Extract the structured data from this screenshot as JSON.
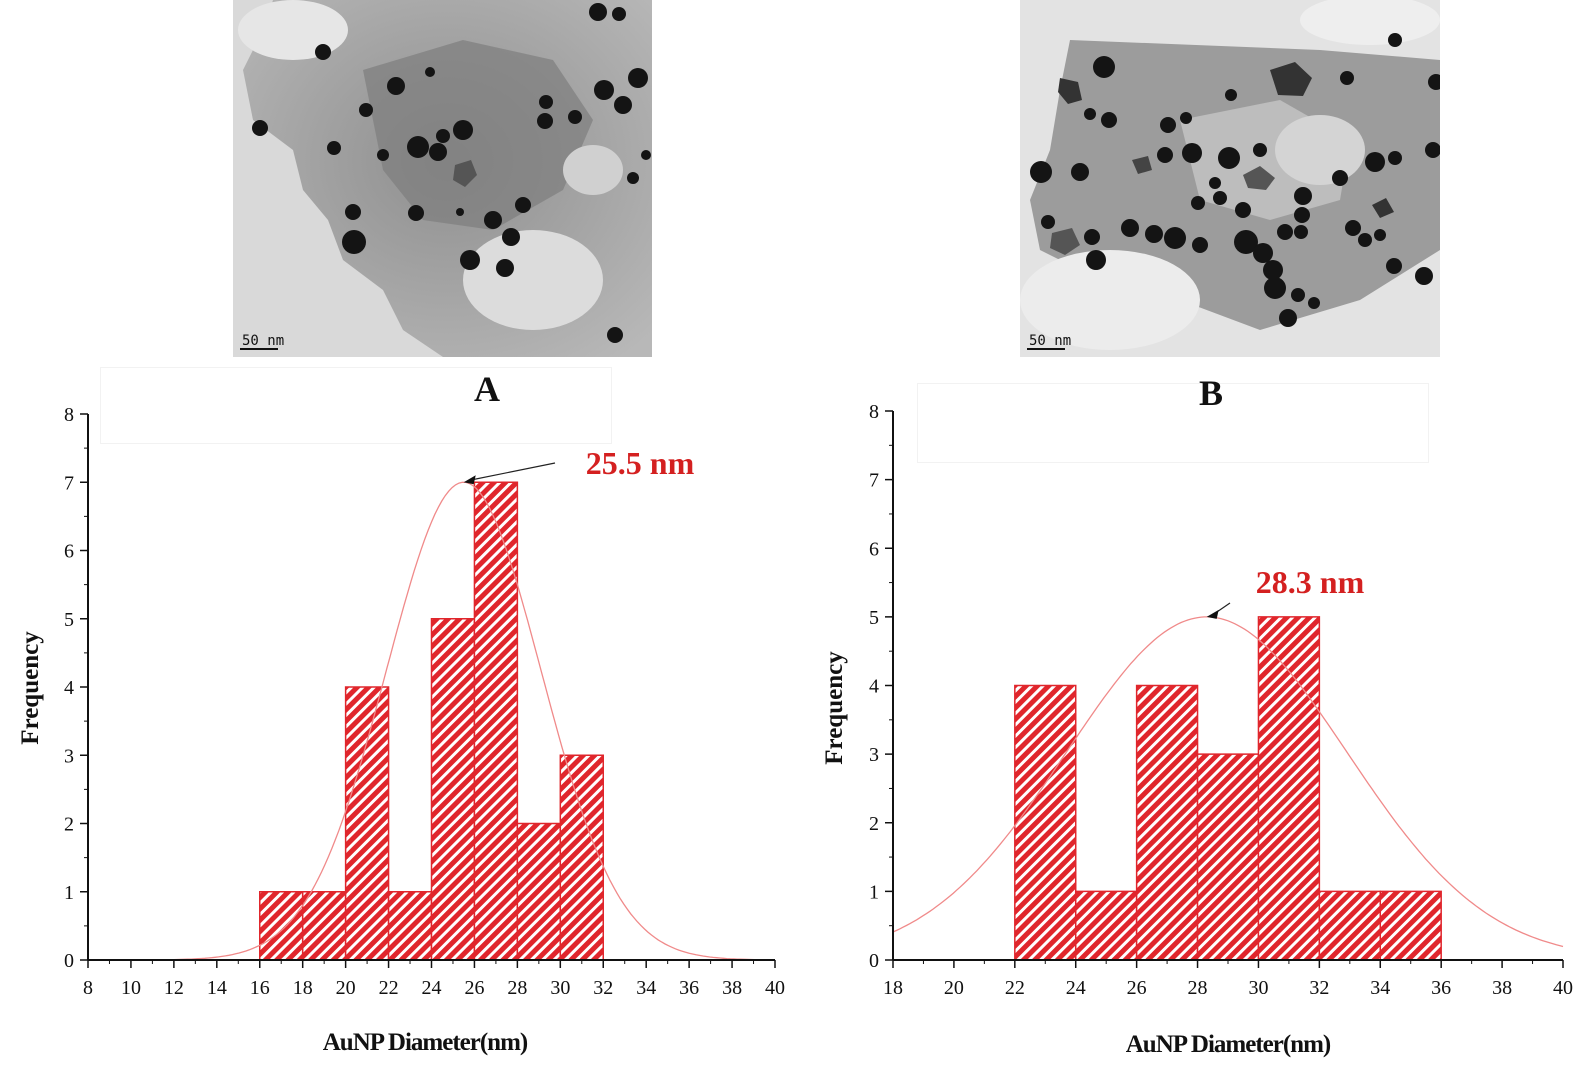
{
  "figure": {
    "panels": [
      {
        "id": "A",
        "label": "A",
        "tem_scale_label": "50 nm",
        "chart_data": {
          "type": "bar",
          "title": "",
          "xlabel": "AuNP Diameter(nm)",
          "ylabel": "Frequency",
          "xlim": [
            8,
            40
          ],
          "ylim": [
            0,
            8
          ],
          "x_ticks": [
            8,
            10,
            12,
            14,
            16,
            18,
            20,
            22,
            24,
            26,
            28,
            30,
            32,
            34,
            36,
            38,
            40
          ],
          "y_ticks": [
            0,
            1,
            2,
            3,
            4,
            5,
            6,
            7,
            8
          ],
          "bins": [
            {
              "start": 16,
              "end": 18,
              "value": 1
            },
            {
              "start": 18,
              "end": 20,
              "value": 1
            },
            {
              "start": 20,
              "end": 22,
              "value": 4
            },
            {
              "start": 22,
              "end": 24,
              "value": 1
            },
            {
              "start": 24,
              "end": 26,
              "value": 5
            },
            {
              "start": 26,
              "end": 28,
              "value": 7
            },
            {
              "start": 28,
              "end": 30,
              "value": 2
            },
            {
              "start": 30,
              "end": 32,
              "value": 3
            }
          ],
          "fit": {
            "type": "gaussian",
            "mean": 25.5,
            "amplitude": 7,
            "sigma": 3.6
          },
          "annotation": {
            "text": "25.5 nm",
            "x": 25.5,
            "y": 7
          },
          "colors": {
            "bar": "#e0262c",
            "curve": "#f08a8a",
            "annotation": "#d42020"
          }
        }
      },
      {
        "id": "B",
        "label": "B",
        "tem_scale_label": "50 nm",
        "chart_data": {
          "type": "bar",
          "title": "",
          "xlabel": "AuNP Diameter(nm)",
          "ylabel": "Frequency",
          "xlim": [
            18,
            40
          ],
          "ylim": [
            0,
            8
          ],
          "x_ticks": [
            18,
            20,
            22,
            24,
            26,
            28,
            30,
            32,
            34,
            36,
            38,
            40
          ],
          "y_ticks": [
            0,
            1,
            2,
            3,
            4,
            5,
            6,
            7,
            8
          ],
          "bins": [
            {
              "start": 22,
              "end": 24,
              "value": 4
            },
            {
              "start": 24,
              "end": 26,
              "value": 1
            },
            {
              "start": 26,
              "end": 28,
              "value": 4
            },
            {
              "start": 28,
              "end": 30,
              "value": 3
            },
            {
              "start": 30,
              "end": 32,
              "value": 5
            },
            {
              "start": 32,
              "end": 34,
              "value": 1
            },
            {
              "start": 34,
              "end": 36,
              "value": 1
            }
          ],
          "fit": {
            "type": "gaussian",
            "mean": 28.3,
            "amplitude": 5,
            "sigma": 4.6
          },
          "annotation": {
            "text": "28.3 nm",
            "x": 28.3,
            "y": 5
          },
          "colors": {
            "bar": "#e0262c",
            "curve": "#f08a8a",
            "annotation": "#d42020"
          }
        }
      }
    ]
  }
}
